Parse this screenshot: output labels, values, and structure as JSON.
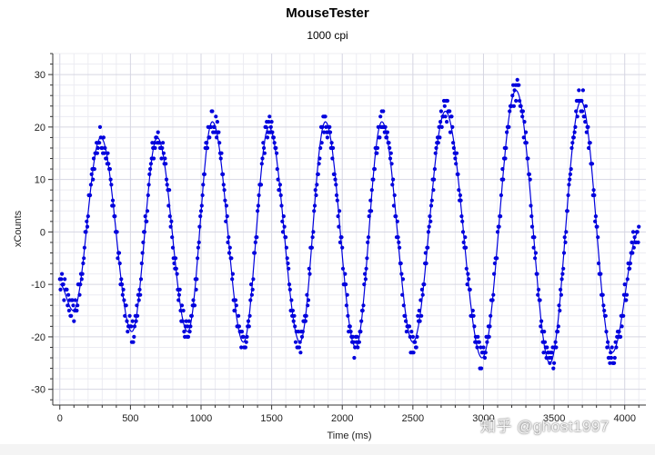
{
  "chart_data": {
    "type": "scatter",
    "title": "MouseTester",
    "subtitle": "1000 cpi",
    "xlabel": "Time (ms)",
    "ylabel": "xCounts",
    "xlim": [
      -50,
      4150
    ],
    "ylim": [
      -33,
      34
    ],
    "xticks": [
      0,
      500,
      1000,
      1500,
      2000,
      2500,
      3000,
      3500,
      4000
    ],
    "xtick_labels": [
      "0",
      "500",
      "1000",
      "1500",
      "2000",
      "2500",
      "3000",
      "3500",
      "4000"
    ],
    "yticks": [
      -30,
      -20,
      -10,
      0,
      10,
      20,
      30
    ],
    "ytick_labels": [
      "-30",
      "-20",
      "-10",
      "0",
      "10",
      "20",
      "30"
    ],
    "grid": true,
    "series": [
      {
        "name": "xCounts",
        "style": "points+line",
        "color": "#0000dd",
        "extrema": [
          {
            "t": 0,
            "v": -10
          },
          {
            "t": 95,
            "v": -15
          },
          {
            "t": 290,
            "v": 18
          },
          {
            "t": 510,
            "v": -19
          },
          {
            "t": 690,
            "v": 18
          },
          {
            "t": 905,
            "v": -19
          },
          {
            "t": 1080,
            "v": 21
          },
          {
            "t": 1300,
            "v": -21
          },
          {
            "t": 1480,
            "v": 20
          },
          {
            "t": 1700,
            "v": -21
          },
          {
            "t": 1880,
            "v": 21
          },
          {
            "t": 2095,
            "v": -22
          },
          {
            "t": 2280,
            "v": 21
          },
          {
            "t": 2500,
            "v": -21
          },
          {
            "t": 2730,
            "v": 23
          },
          {
            "t": 2990,
            "v": -24
          },
          {
            "t": 3230,
            "v": 27
          },
          {
            "t": 3470,
            "v": -25
          },
          {
            "t": 3690,
            "v": 25
          },
          {
            "t": 3910,
            "v": -23
          },
          {
            "t": 4100,
            "v": 0
          }
        ]
      }
    ]
  },
  "watermark": "知乎 @ghost1997"
}
